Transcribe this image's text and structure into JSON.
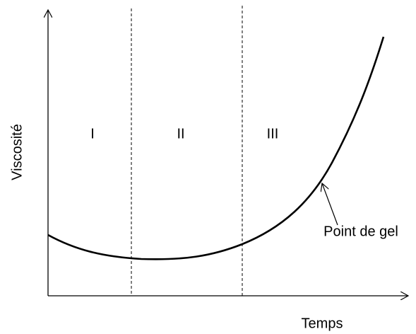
{
  "axes": {
    "y_label": "Viscosité",
    "x_label": "Temps"
  },
  "regions": [
    "I",
    "II",
    "III"
  ],
  "annotation": "Point de gel"
}
